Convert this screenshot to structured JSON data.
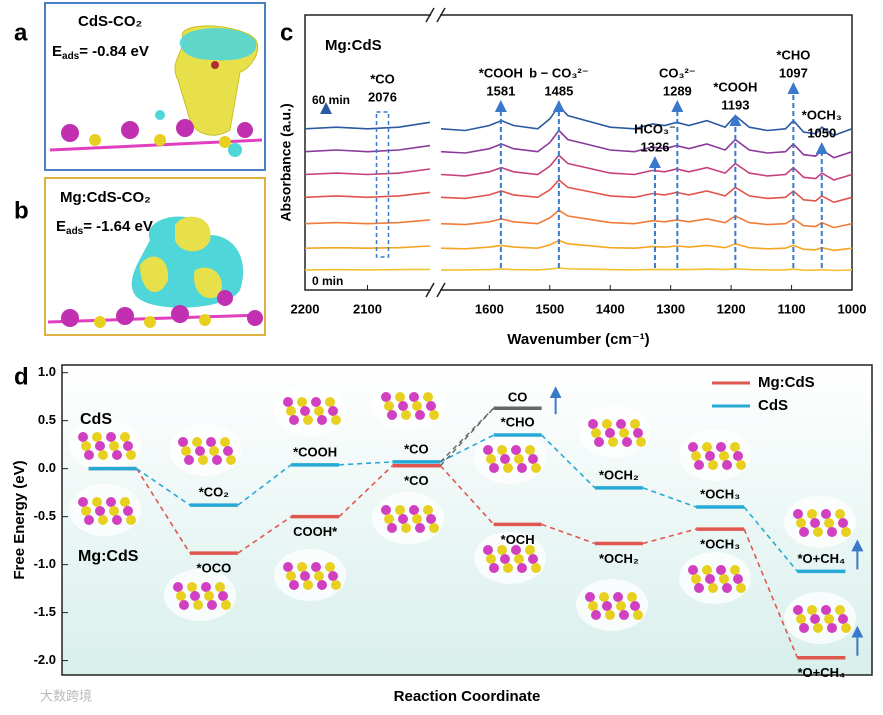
{
  "panel_labels": [
    "a",
    "b",
    "c",
    "d"
  ],
  "panel_a": {
    "title": "CdS-CO₂",
    "energy_symbol": "E",
    "energy_subscript": "ads",
    "energy_value": "= -0.84 eV"
  },
  "panel_b": {
    "title": "Mg:CdS-CO₂",
    "energy_symbol": "E",
    "energy_subscript": "ads",
    "energy_value": "= -1.64 eV"
  },
  "watermark": "大数跨境",
  "chart_data": [
    {
      "type": "line",
      "title": "Mg:CdS",
      "x_label": "Wavenumber (cm⁻¹)",
      "y_label": "Absorbance (a.u.)",
      "time_start": "0 min",
      "time_end": "60 min",
      "xlim": [
        2200,
        1000
      ],
      "xbreak": [
        2000,
        1680
      ],
      "xticks": [
        2200,
        2100,
        1600,
        1500,
        1400,
        1300,
        1200,
        1100,
        1000
      ],
      "ylim": [
        -0.5,
        9.5
      ],
      "x": [
        2200,
        2150,
        2100,
        2050,
        2000,
        1680,
        1640,
        1600,
        1580,
        1560,
        1520,
        1500,
        1485,
        1470,
        1440,
        1400,
        1360,
        1330,
        1310,
        1290,
        1270,
        1240,
        1210,
        1193,
        1170,
        1140,
        1110,
        1097,
        1080,
        1060,
        1050,
        1030,
        1000
      ],
      "series": [
        {
          "color": "#f2c230",
          "values": [
            0.23,
            0.24,
            0.23,
            0.24,
            0.25,
            0.23,
            0.23,
            0.24,
            0.26,
            0.24,
            0.23,
            0.26,
            0.3,
            0.27,
            0.26,
            0.24,
            0.23,
            0.25,
            0.24,
            0.25,
            0.24,
            0.26,
            0.24,
            0.27,
            0.24,
            0.23,
            0.23,
            0.26,
            0.22,
            0.22,
            0.24,
            0.21,
            0.23
          ]
        },
        {
          "color": "#f5a623",
          "values": [
            1.02,
            1.04,
            1.02,
            1.04,
            1.1,
            1.02,
            1.0,
            1.06,
            1.12,
            1.06,
            1.02,
            1.14,
            1.3,
            1.18,
            1.12,
            1.04,
            1.02,
            1.08,
            1.06,
            1.1,
            1.06,
            1.12,
            1.04,
            1.18,
            1.04,
            1.0,
            1.02,
            1.12,
            0.98,
            0.96,
            1.04,
            0.94,
            1.02
          ]
        },
        {
          "color": "#f07c3a",
          "values": [
            1.91,
            1.95,
            1.91,
            1.95,
            2.05,
            1.91,
            1.88,
            1.98,
            2.09,
            1.98,
            1.91,
            2.12,
            2.4,
            2.19,
            2.09,
            1.95,
            1.91,
            2.02,
            1.98,
            2.05,
            1.98,
            2.09,
            1.95,
            2.19,
            1.95,
            1.88,
            1.91,
            2.09,
            1.84,
            1.81,
            1.95,
            1.77,
            1.91
          ]
        },
        {
          "color": "#e2534e",
          "values": [
            2.87,
            2.92,
            2.87,
            2.92,
            3.05,
            2.87,
            2.83,
            2.96,
            3.1,
            2.96,
            2.87,
            3.14,
            3.5,
            3.23,
            3.1,
            2.92,
            2.87,
            3.01,
            2.96,
            3.05,
            2.96,
            3.1,
            2.92,
            3.23,
            2.92,
            2.83,
            2.87,
            3.1,
            2.78,
            2.74,
            2.92,
            2.69,
            2.87
          ]
        },
        {
          "color": "#c8407a",
          "values": [
            3.7,
            3.75,
            3.7,
            3.75,
            3.9,
            3.7,
            3.65,
            3.8,
            3.95,
            3.8,
            3.7,
            4.0,
            4.4,
            4.1,
            3.95,
            3.75,
            3.7,
            3.85,
            3.8,
            3.9,
            3.8,
            3.95,
            3.75,
            4.1,
            3.75,
            3.65,
            3.7,
            3.95,
            3.6,
            3.55,
            3.75,
            3.5,
            3.7
          ]
        },
        {
          "color": "#8a3a9a",
          "values": [
            4.53,
            4.59,
            4.53,
            4.59,
            4.75,
            4.53,
            4.48,
            4.64,
            4.81,
            4.64,
            4.53,
            4.86,
            5.3,
            4.97,
            4.81,
            4.59,
            4.53,
            4.7,
            4.64,
            4.75,
            4.64,
            4.81,
            4.59,
            4.97,
            4.59,
            4.48,
            4.53,
            4.81,
            4.42,
            4.37,
            4.59,
            4.31,
            4.53
          ]
        },
        {
          "color": "#2c5aa0",
          "values": [
            5.36,
            5.42,
            5.36,
            5.42,
            5.6,
            5.36,
            5.3,
            5.48,
            5.66,
            5.48,
            5.36,
            5.72,
            6.2,
            5.84,
            5.66,
            5.42,
            5.36,
            5.54,
            5.48,
            5.6,
            5.48,
            5.66,
            5.42,
            5.84,
            5.42,
            5.3,
            5.36,
            5.66,
            5.24,
            5.18,
            5.42,
            5.12,
            5.36
          ]
        }
      ],
      "annotations": [
        {
          "text": "*CO",
          "x": 2076
        },
        {
          "text": "*COOH",
          "x": 1581
        },
        {
          "text": "b − CO₃²⁻",
          "x": 1485
        },
        {
          "text": "HCO₃⁻",
          "x": 1326
        },
        {
          "text": "CO₃²⁻",
          "x": 1289
        },
        {
          "text": "*COOH",
          "x": 1193
        },
        {
          "text": "*CHO",
          "x": 1097
        },
        {
          "text": "*OCH₃",
          "x": 1050
        }
      ]
    },
    {
      "type": "energy_levels",
      "x_label": "Reaction Coordinate",
      "y_label": "Free Energy (eV)",
      "ylim": [
        -2.15,
        1.08
      ],
      "yticks": [
        {
          "value": 1.0,
          "label": "1.0"
        },
        {
          "value": 0.5,
          "label": "0.5"
        },
        {
          "value": 0.0,
          "label": "0.0"
        },
        {
          "value": -0.5,
          "label": "-0.5"
        },
        {
          "value": -1.0,
          "label": "-1.0"
        },
        {
          "value": -1.5,
          "label": "-1.5"
        },
        {
          "value": -2.0,
          "label": "-2.0"
        }
      ],
      "legend": "top-right",
      "series": [
        {
          "name": "Mg:CdS",
          "color": "#e0574f",
          "values": [
            0,
            -0.88,
            -0.5,
            0.03,
            -0.58,
            -0.78,
            -0.63,
            -1.97
          ],
          "labels": [
            null,
            "*OCO",
            "COOH*",
            "*CO",
            "*OCH",
            "*OCH₂",
            "*OCH₃",
            "*O+CH₄"
          ]
        },
        {
          "name": "CdS",
          "color": "#27a9d6",
          "values": [
            0,
            -0.38,
            0.04,
            0.07,
            0.35,
            -0.2,
            -0.4,
            -1.07
          ],
          "labels": [
            null,
            "*CO₂",
            "*COOH",
            "*CO",
            "*CHO",
            "*OCH₂",
            "*OCH₃",
            "*O+CH₄"
          ]
        }
      ],
      "extra_levels": [
        {
          "label": "CO",
          "step": 4,
          "value": 0.63,
          "color": "#666666"
        }
      ]
    }
  ]
}
